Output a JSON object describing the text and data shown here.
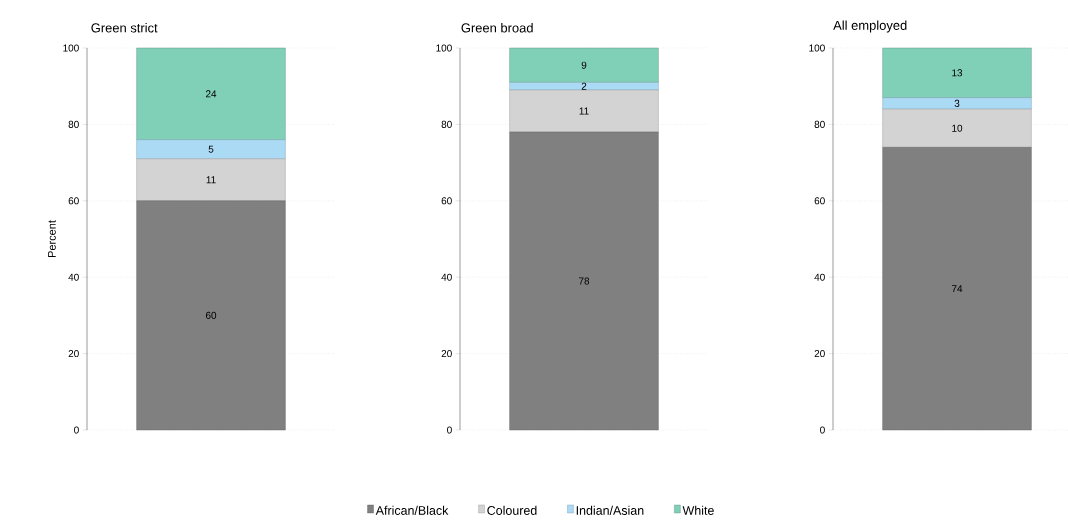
{
  "chart_data": [
    {
      "type": "bar",
      "title": "Green strict",
      "ylabel": "Percent",
      "categories": [
        null
      ],
      "stacked": true,
      "ylim": [
        0,
        100
      ],
      "yticks": [
        0,
        20,
        40,
        60,
        80,
        100
      ],
      "grid": "y",
      "legend": false,
      "data_labels": true,
      "series": [
        {
          "color": "#808080",
          "values": [
            60
          ]
        },
        {
          "color": "#d3d3d3",
          "values": [
            11
          ]
        },
        {
          "color": "#abdaf5",
          "values": [
            5
          ]
        },
        {
          "color": "#80cfb7",
          "values": [
            24
          ]
        }
      ]
    },
    {
      "type": "bar",
      "title": "Green broad",
      "categories": [
        null
      ],
      "stacked": true,
      "ylim": [
        0,
        100
      ],
      "yticks": [
        0,
        20,
        40,
        60,
        80,
        100
      ],
      "grid": "y",
      "legend": "bottom",
      "data_labels": true,
      "series": [
        {
          "name": "African/Black",
          "color": "#808080",
          "values": [
            78
          ]
        },
        {
          "name": "Coloured",
          "color": "#d3d3d3",
          "values": [
            11
          ]
        },
        {
          "name": "Indian/Asian",
          "color": "#abdaf5",
          "values": [
            2
          ]
        },
        {
          "name": "White",
          "color": "#80cfb7",
          "values": [
            9
          ]
        }
      ]
    },
    {
      "type": "bar",
      "title": "All employed",
      "categories": [
        null
      ],
      "stacked": true,
      "ylim": [
        0,
        100
      ],
      "yticks": [
        0,
        20,
        40,
        60,
        80,
        100
      ],
      "grid": "y",
      "legend": false,
      "data_labels": true,
      "series": [
        {
          "color": "#808080",
          "values": [
            74
          ]
        },
        {
          "color": "#d3d3d3",
          "values": [
            10
          ]
        },
        {
          "color": "#abdaf5",
          "values": [
            3
          ]
        },
        {
          "color": "#80cfb7",
          "values": [
            13
          ]
        }
      ]
    }
  ]
}
